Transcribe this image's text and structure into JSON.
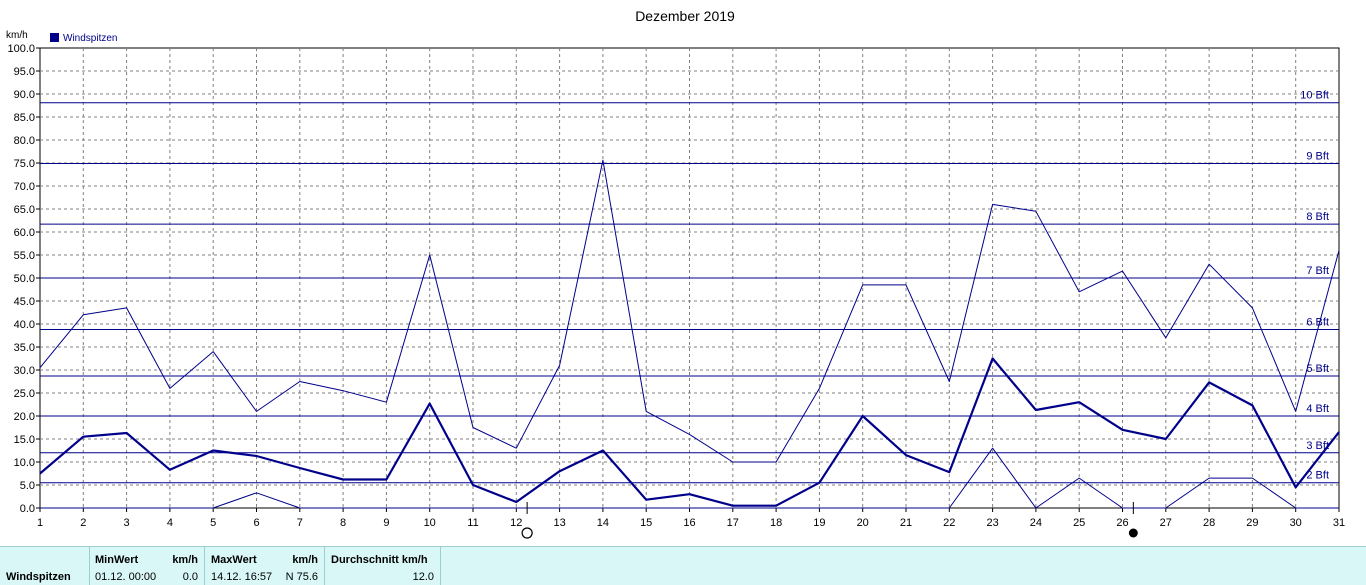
{
  "chart_data": {
    "type": "line",
    "title": "Dezember 2019",
    "ylabel": "km/h",
    "ylim": [
      0,
      100
    ],
    "yticks": [
      "0.0",
      "5.0",
      "10.0",
      "15.0",
      "20.0",
      "25.0",
      "30.0",
      "35.0",
      "40.0",
      "45.0",
      "50.0",
      "55.0",
      "60.0",
      "65.0",
      "70.0",
      "75.0",
      "80.0",
      "85.0",
      "90.0",
      "95.0",
      "100.0"
    ],
    "x": [
      1,
      2,
      3,
      4,
      5,
      6,
      7,
      8,
      9,
      10,
      11,
      12,
      13,
      14,
      15,
      16,
      17,
      18,
      19,
      20,
      21,
      22,
      23,
      24,
      25,
      26,
      27,
      28,
      29,
      30,
      31
    ],
    "grid": true,
    "legend": {
      "label": "Windspitzen",
      "color": "#00008b",
      "placement": "top-left"
    },
    "series": [
      {
        "name": "Windspitzen",
        "role": "max",
        "values": [
          30.5,
          42,
          43.5,
          26,
          34,
          21,
          27.5,
          25.5,
          23,
          55,
          17.5,
          13,
          31,
          75.6,
          21,
          16,
          10,
          10,
          26,
          48.5,
          48.5,
          27.5,
          66,
          64.5,
          47,
          51.5,
          37,
          53,
          43.5,
          21,
          56
        ]
      },
      {
        "name": "Windspitzen",
        "role": "mean",
        "values": [
          7.5,
          15.5,
          16.3,
          8.3,
          12.5,
          11.3,
          8.7,
          6.2,
          6.2,
          22.7,
          5,
          1.3,
          8,
          12.5,
          1.8,
          3,
          0.5,
          0.5,
          5.5,
          20,
          11.5,
          7.8,
          32.5,
          21.3,
          23,
          17,
          15,
          27.3,
          22.3,
          4.5,
          16.5
        ]
      },
      {
        "name": "Windspitzen",
        "role": "min",
        "values": [
          0,
          0,
          0,
          0,
          0,
          3.3,
          0,
          0,
          0,
          0,
          0,
          0,
          0,
          0,
          0,
          0,
          0,
          0,
          0,
          0,
          0,
          0,
          13,
          0,
          6.5,
          0,
          0,
          6.5,
          6.5,
          0,
          0
        ]
      }
    ],
    "beaufort_lines": [
      {
        "label": "2 Bft",
        "value": 5.5
      },
      {
        "label": "3 Bft",
        "value": 12
      },
      {
        "label": "4 Bft",
        "value": 20
      },
      {
        "label": "5 Bft",
        "value": 28.7
      },
      {
        "label": "6 Bft",
        "value": 38.8
      },
      {
        "label": "7 Bft",
        "value": 50
      },
      {
        "label": "8 Bft",
        "value": 61.7
      },
      {
        "label": "9 Bft",
        "value": 74.9
      },
      {
        "label": "10 Bft",
        "value": 88.1
      }
    ],
    "moon_phases": [
      {
        "day": 12,
        "phase": "full",
        "symbol": "○"
      },
      {
        "day": 26,
        "phase": "new",
        "symbol": "●"
      }
    ]
  },
  "stats": {
    "row_label": "Windspitzen",
    "min_header": "MinWert",
    "min_unit": "km/h",
    "min_time": "01.12.  00:00",
    "min_value": "0.0",
    "max_header": "MaxWert",
    "max_unit": "km/h",
    "max_time": "14.12.  16:57",
    "max_value": "N 75.6",
    "avg_header": "Durchschnitt km/h",
    "avg_value": "12.0"
  },
  "colors": {
    "series": "#00008b",
    "grid": "#808080",
    "stats_bg": "#d9f7f7"
  }
}
